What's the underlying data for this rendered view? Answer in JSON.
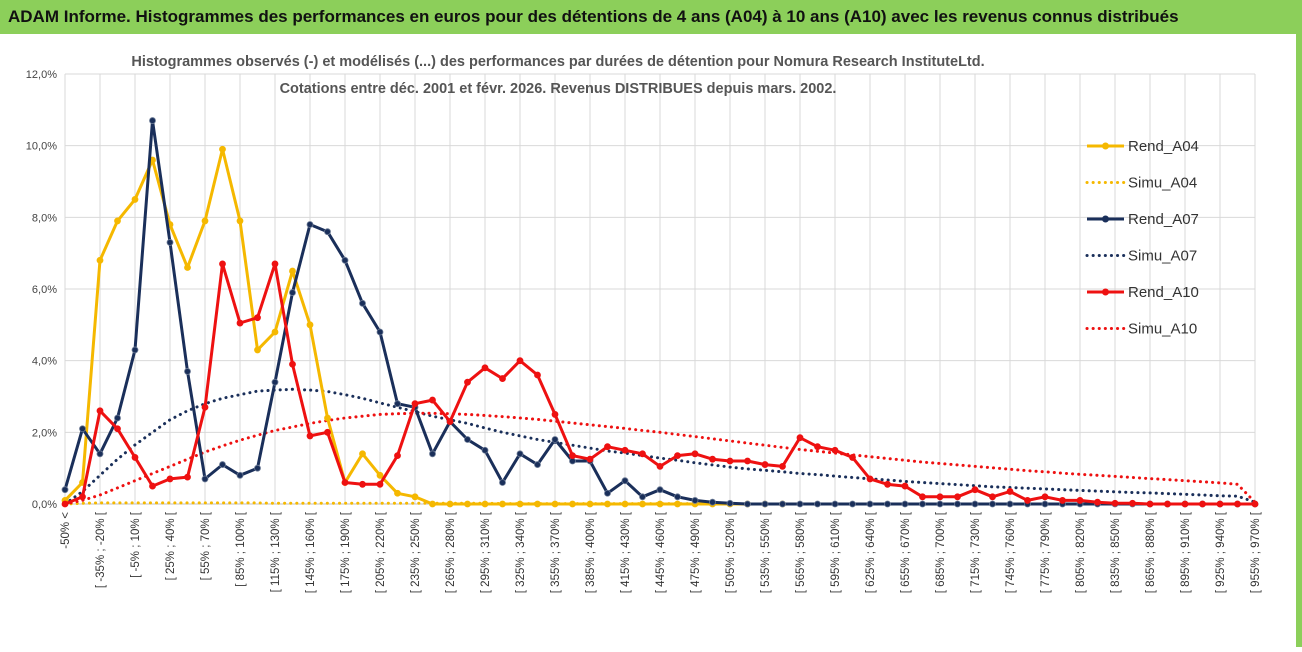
{
  "header": {
    "title": "ADAM Informe. Histogrammes des performances en euros pour des détentions de 4 ans (A04) à 10 ans (A10) avec les revenus connus distribués",
    "background_color": "#8ccf5a"
  },
  "chart_data": {
    "type": "line",
    "title_lines": [
      "Histogrammes observés (-) et modélisés (...) des performances par durées de détention pour Nomura Research InstituteLtd.",
      "Cotations entre déc. 2001 et févr. 2026. Revenus DISTRIBUES depuis mars. 2002."
    ],
    "xlabel": "",
    "ylabel": "",
    "ylim": [
      0,
      12
    ],
    "y_unit": "%",
    "y_ticks": [
      "0,0%",
      "2,0%",
      "4,0%",
      "6,0%",
      "8,0%",
      "10,0%",
      "12,0%"
    ],
    "grid": true,
    "legend_position": "right",
    "x_tick_labels": [
      "-50% <",
      "[ -35% ; -20% [",
      "[ -5% ; 10% [",
      "[ 25% ; 40% [",
      "[ 55% ; 70% [",
      "[ 85% ; 100% [",
      "[ 115% ; 130% [",
      "[ 145% ; 160% [",
      "[ 175% ; 190% [",
      "[ 205% ; 220% [",
      "[ 235% ; 250% [",
      "[ 265% ; 280% [",
      "[ 295% ; 310% [",
      "[ 325% ; 340% [",
      "[ 355% ; 370% [",
      "[ 385% ; 400% [",
      "[ 415% ; 430% [",
      "[ 445% ; 460% [",
      "[ 475% ; 490% [",
      "[ 505% ; 520% [",
      "[ 535% ; 550% [",
      "[ 565% ; 580% [",
      "[ 595% ; 610% [",
      "[ 625% ; 640% [",
      "[ 655% ; 670% [",
      "[ 685% ; 700% [",
      "[ 715% ; 730% [",
      "[ 745% ; 760% [",
      "[ 775% ; 790% [",
      "[ 805% ; 820% [",
      "[ 835% ; 850% [",
      "[ 865% ; 880% [",
      "[ 895% ; 910% [",
      "[ 925% ; 940% [",
      "[ 955% ; 970% ["
    ],
    "x_tick_every": 2,
    "n_categories": 69,
    "series": [
      {
        "name": "Rend_A04",
        "style": "solid",
        "color": "#f5b800",
        "markers": true,
        "skip_zero_tail_after": 41,
        "values": [
          0.1,
          0.6,
          6.8,
          7.9,
          8.5,
          9.6,
          7.8,
          6.6,
          7.9,
          9.9,
          7.9,
          4.3,
          4.8,
          6.5,
          5.0,
          2.4,
          0.6,
          1.4,
          0.8,
          0.3,
          0.2,
          0,
          0,
          0,
          0,
          0,
          0,
          0,
          0,
          0,
          0,
          0,
          0,
          0,
          0,
          0,
          0,
          0,
          0,
          0,
          0,
          0
        ]
      },
      {
        "name": "Simu_A04",
        "style": "dotted",
        "color": "#f5b800",
        "markers": false,
        "values": [
          0,
          0.02,
          0.03,
          0.03,
          0.03,
          0.03,
          0.03,
          0.03,
          0.03,
          0.03,
          0.03,
          0.03,
          0.02,
          0.02,
          0.02,
          0.02,
          0.02,
          0.02,
          0.02,
          0.02,
          0.02,
          0.02,
          0.02,
          0.02,
          0.02,
          0.01,
          0.01,
          0.01,
          0.01,
          0.01,
          0.01,
          0.01,
          0.01,
          0.01,
          0.01,
          0.01,
          0.01,
          0.01
        ]
      },
      {
        "name": "Rend_A07",
        "style": "solid",
        "color": "#1a2f5a",
        "markers": true,
        "values": [
          0.4,
          2.1,
          1.4,
          2.4,
          4.3,
          10.7,
          7.3,
          3.7,
          0.7,
          1.1,
          0.8,
          1.0,
          3.4,
          5.9,
          7.8,
          7.6,
          6.8,
          5.6,
          4.8,
          2.8,
          2.7,
          1.4,
          2.3,
          1.8,
          1.5,
          0.6,
          1.4,
          1.1,
          1.8,
          1.2,
          1.2,
          0.3,
          0.65,
          0.2,
          0.4,
          0.2,
          0.1,
          0.05,
          0.02,
          0,
          0,
          0,
          0,
          0,
          0,
          0,
          0,
          0,
          0,
          0,
          0,
          0,
          0,
          0,
          0,
          0,
          0,
          0,
          0,
          0,
          0,
          0,
          0,
          0,
          0,
          0,
          0,
          0,
          0
        ]
      },
      {
        "name": "Simu_A07",
        "style": "dotted",
        "color": "#1a2f5a",
        "markers": false,
        "values": [
          0.0,
          0.35,
          0.8,
          1.25,
          1.65,
          2.0,
          2.35,
          2.6,
          2.8,
          2.95,
          3.05,
          3.15,
          3.18,
          3.2,
          3.18,
          3.14,
          3.05,
          2.95,
          2.82,
          2.7,
          2.58,
          2.45,
          2.35,
          2.25,
          2.12,
          2.0,
          1.9,
          1.8,
          1.72,
          1.64,
          1.56,
          1.48,
          1.42,
          1.35,
          1.28,
          1.22,
          1.15,
          1.09,
          1.03,
          0.98,
          0.94,
          0.9,
          0.85,
          0.82,
          0.78,
          0.74,
          0.7,
          0.67,
          0.63,
          0.6,
          0.57,
          0.54,
          0.51,
          0.48,
          0.46,
          0.44,
          0.42,
          0.4,
          0.38,
          0.36,
          0.34,
          0.32,
          0.31,
          0.29,
          0.27,
          0.25,
          0.23,
          0.22,
          0.05
        ]
      },
      {
        "name": "Rend_A10",
        "style": "solid",
        "color": "#ee1111",
        "markers": true,
        "values": [
          0.0,
          0.2,
          2.6,
          2.1,
          1.3,
          0.5,
          0.7,
          0.75,
          2.7,
          6.7,
          5.05,
          5.2,
          6.7,
          3.9,
          1.9,
          2.0,
          0.6,
          0.55,
          0.55,
          1.35,
          2.8,
          2.9,
          2.3,
          3.4,
          3.8,
          3.5,
          4.0,
          3.6,
          2.5,
          1.35,
          1.25,
          1.6,
          1.5,
          1.4,
          1.05,
          1.35,
          1.4,
          1.25,
          1.2,
          1.2,
          1.1,
          1.05,
          1.85,
          1.6,
          1.5,
          1.3,
          0.7,
          0.55,
          0.5,
          0.2,
          0.2,
          0.2,
          0.4,
          0.2,
          0.35,
          0.1,
          0.2,
          0.1,
          0.1,
          0.05,
          0.02,
          0.02,
          0,
          0,
          0,
          0,
          0,
          0,
          0
        ]
      },
      {
        "name": "Simu_A10",
        "style": "dotted",
        "color": "#ee1111",
        "markers": false,
        "values": [
          0.0,
          0.1,
          0.25,
          0.45,
          0.65,
          0.85,
          1.05,
          1.25,
          1.45,
          1.62,
          1.78,
          1.92,
          2.05,
          2.15,
          2.25,
          2.33,
          2.4,
          2.45,
          2.5,
          2.52,
          2.53,
          2.53,
          2.52,
          2.5,
          2.47,
          2.44,
          2.4,
          2.36,
          2.31,
          2.26,
          2.21,
          2.16,
          2.11,
          2.05,
          2.0,
          1.94,
          1.88,
          1.82,
          1.76,
          1.7,
          1.64,
          1.58,
          1.52,
          1.47,
          1.42,
          1.37,
          1.32,
          1.27,
          1.22,
          1.17,
          1.13,
          1.09,
          1.05,
          1.01,
          0.97,
          0.93,
          0.9,
          0.86,
          0.83,
          0.8,
          0.77,
          0.74,
          0.71,
          0.68,
          0.65,
          0.62,
          0.59,
          0.55,
          0.05
        ]
      }
    ]
  }
}
